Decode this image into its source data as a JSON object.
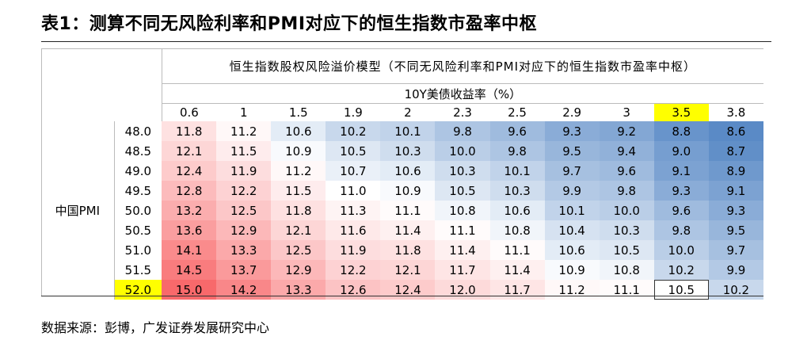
{
  "title": "表1：测算不同无风险利率和PMI对应下的恒生指数市盈率中枢",
  "source": "数据来源：彭博，广发证券发展研究中心",
  "chart_data": {
    "type": "heatmap",
    "title": "恒生指数股权风险溢价模型（不同无风险利率和PMI对应下的恒生指数市盈率中枢）",
    "xlabel": "10Y美债收益率（%）",
    "ylabel": "中国PMI",
    "x": [
      "0.6",
      "1",
      "1.5",
      "1.9",
      "2",
      "2.3",
      "2.5",
      "2.9",
      "3",
      "3.5",
      "3.8"
    ],
    "y": [
      "48.0",
      "48.5",
      "49.0",
      "49.5",
      "50.0",
      "50.5",
      "51.0",
      "51.5",
      "52.0"
    ],
    "values": [
      [
        "11.8",
        "11.2",
        "10.6",
        "10.2",
        "10.1",
        "9.8",
        "9.6",
        "9.3",
        "9.2",
        "8.8",
        "8.6"
      ],
      [
        "12.1",
        "11.5",
        "10.9",
        "10.5",
        "10.3",
        "10.0",
        "9.8",
        "9.5",
        "9.4",
        "9.0",
        "8.7"
      ],
      [
        "12.4",
        "11.9",
        "11.2",
        "10.7",
        "10.6",
        "10.3",
        "10.1",
        "9.7",
        "9.6",
        "9.1",
        "8.9"
      ],
      [
        "12.8",
        "12.2",
        "11.5",
        "11.0",
        "10.9",
        "10.5",
        "10.3",
        "9.9",
        "9.8",
        "9.3",
        "9.1"
      ],
      [
        "13.2",
        "12.5",
        "11.8",
        "11.3",
        "11.1",
        "10.8",
        "10.6",
        "10.1",
        "10.0",
        "9.6",
        "9.3"
      ],
      [
        "13.6",
        "12.9",
        "12.1",
        "11.6",
        "11.4",
        "11.1",
        "10.8",
        "10.4",
        "10.3",
        "9.8",
        "9.5"
      ],
      [
        "14.1",
        "13.3",
        "12.5",
        "11.9",
        "11.8",
        "11.4",
        "11.1",
        "10.6",
        "10.5",
        "10.0",
        "9.7"
      ],
      [
        "14.5",
        "13.7",
        "12.9",
        "12.2",
        "12.1",
        "11.7",
        "11.4",
        "10.9",
        "10.8",
        "10.2",
        "9.9"
      ],
      [
        "15.0",
        "14.2",
        "13.3",
        "12.6",
        "12.4",
        "12.0",
        "11.7",
        "11.2",
        "11.1",
        "10.5",
        "10.2"
      ]
    ],
    "highlight": {
      "x": "3.5",
      "y": "52.0",
      "cell": "10.5",
      "color": "#ffff00"
    },
    "colors": {
      "high": "#f8696b",
      "mid": "#ffffff",
      "low": "#5a8ac6"
    },
    "midpoint": 11.0
  }
}
